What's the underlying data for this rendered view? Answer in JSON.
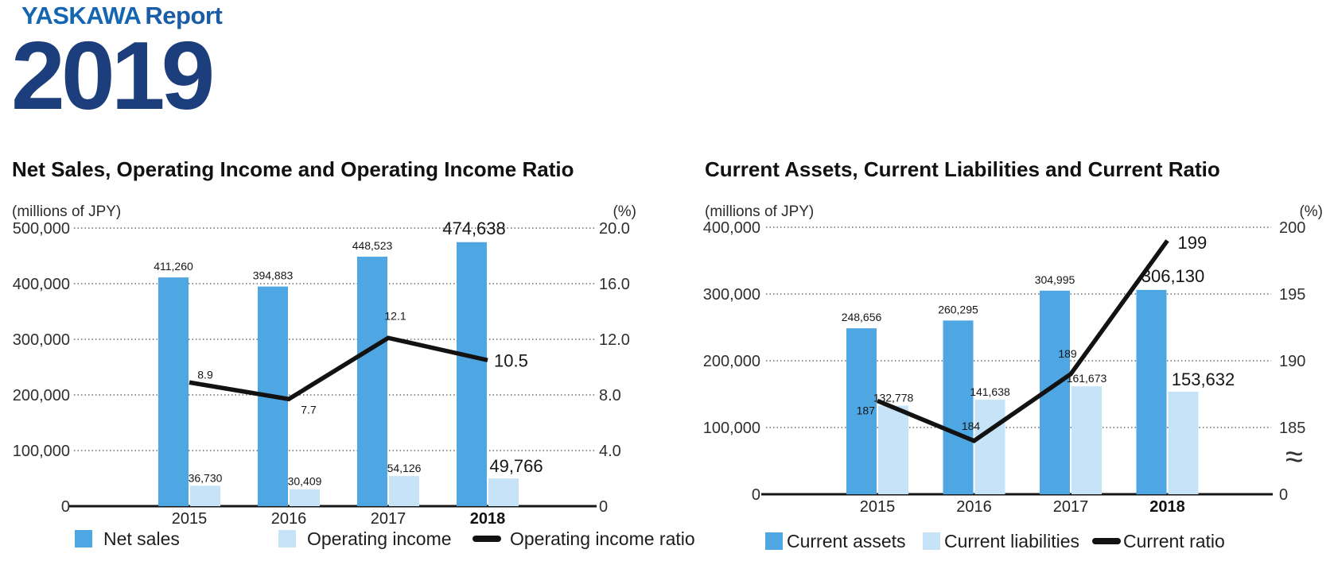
{
  "logo": {
    "brand": "YASKAWA",
    "product": "Report",
    "year": "2019"
  },
  "colors": {
    "bar_primary": "#4EA7E2",
    "bar_secondary": "#C6E3F8",
    "line": "#121212",
    "brand_blue": "#1566B2",
    "report_blue": "#1A5CA6",
    "year_navy": "#1C3E7D"
  },
  "chart_data": [
    {
      "type": "bar",
      "title": "Net Sales, Operating Income and Operating Income Ratio",
      "unit_left": "(millions of JPY)",
      "unit_right": "(%)",
      "categories": [
        "2015",
        "2016",
        "2017",
        "2018"
      ],
      "emphasized_category": "2018",
      "grid_ticks": [
        {
          "left": "500,000",
          "right": "20.0",
          "value": 500000
        },
        {
          "left": "400,000",
          "right": "16.0",
          "value": 400000
        },
        {
          "left": "300,000",
          "right": "12.0",
          "value": 300000
        },
        {
          "left": "200,000",
          "right": "8.0",
          "value": 200000
        },
        {
          "left": "100,000",
          "right": "4.0",
          "value": 100000
        }
      ],
      "zero_left": "0",
      "zero_right": "0",
      "ylim_left": [
        0,
        500000
      ],
      "ylim_right": [
        0,
        20
      ],
      "grid": true,
      "legend_position": "bottom",
      "series": [
        {
          "name": "Net sales",
          "values": [
            411260,
            394883,
            448523,
            474638
          ],
          "labels": [
            "411,260",
            "394,883",
            "448,523",
            "474,638"
          ]
        },
        {
          "name": "Operating income",
          "values": [
            36730,
            30409,
            54126,
            49766
          ],
          "labels": [
            "36,730",
            "30,409",
            "54,126",
            "49,766"
          ]
        }
      ],
      "line": {
        "name": "Operating income ratio",
        "values": [
          8.9,
          7.7,
          12.1,
          10.5
        ],
        "labels": [
          "8.9",
          "7.7",
          "12.1",
          "10.5"
        ],
        "axis": {
          "offset": 0,
          "scale": 25000
        }
      }
    },
    {
      "type": "bar",
      "title": "Current Assets, Current Liabilities and Current Ratio",
      "unit_left": "(millions of JPY)",
      "unit_right": "(%)",
      "categories": [
        "2015",
        "2016",
        "2017",
        "2018"
      ],
      "emphasized_category": "2018",
      "grid_ticks": [
        {
          "left": "400,000",
          "right": "200",
          "value": 400000
        },
        {
          "left": "300,000",
          "right": "195",
          "value": 300000
        },
        {
          "left": "200,000",
          "right": "190",
          "value": 200000
        },
        {
          "left": "100,000",
          "right": "185",
          "value": 100000
        }
      ],
      "zero_left": "0",
      "zero_right": "0",
      "axis_break": "≈",
      "ylim_left": [
        0,
        400000
      ],
      "ylim_right": [
        185,
        200
      ],
      "grid": true,
      "legend_position": "bottom",
      "series": [
        {
          "name": "Current assets",
          "values": [
            248656,
            260295,
            304995,
            306130
          ],
          "labels": [
            "248,656",
            "260,295",
            "304,995",
            "306,130"
          ]
        },
        {
          "name": "Current liabilities",
          "values": [
            132778,
            141638,
            161673,
            153632
          ],
          "labels": [
            "132,778",
            "141,638",
            "161,673",
            "153,632"
          ]
        }
      ],
      "line": {
        "name": "Current ratio",
        "values": [
          187,
          184,
          189,
          199
        ],
        "labels": [
          "187",
          "184",
          "189",
          "199"
        ],
        "axis": {
          "offset": 180,
          "scale": 20000
        }
      }
    }
  ]
}
